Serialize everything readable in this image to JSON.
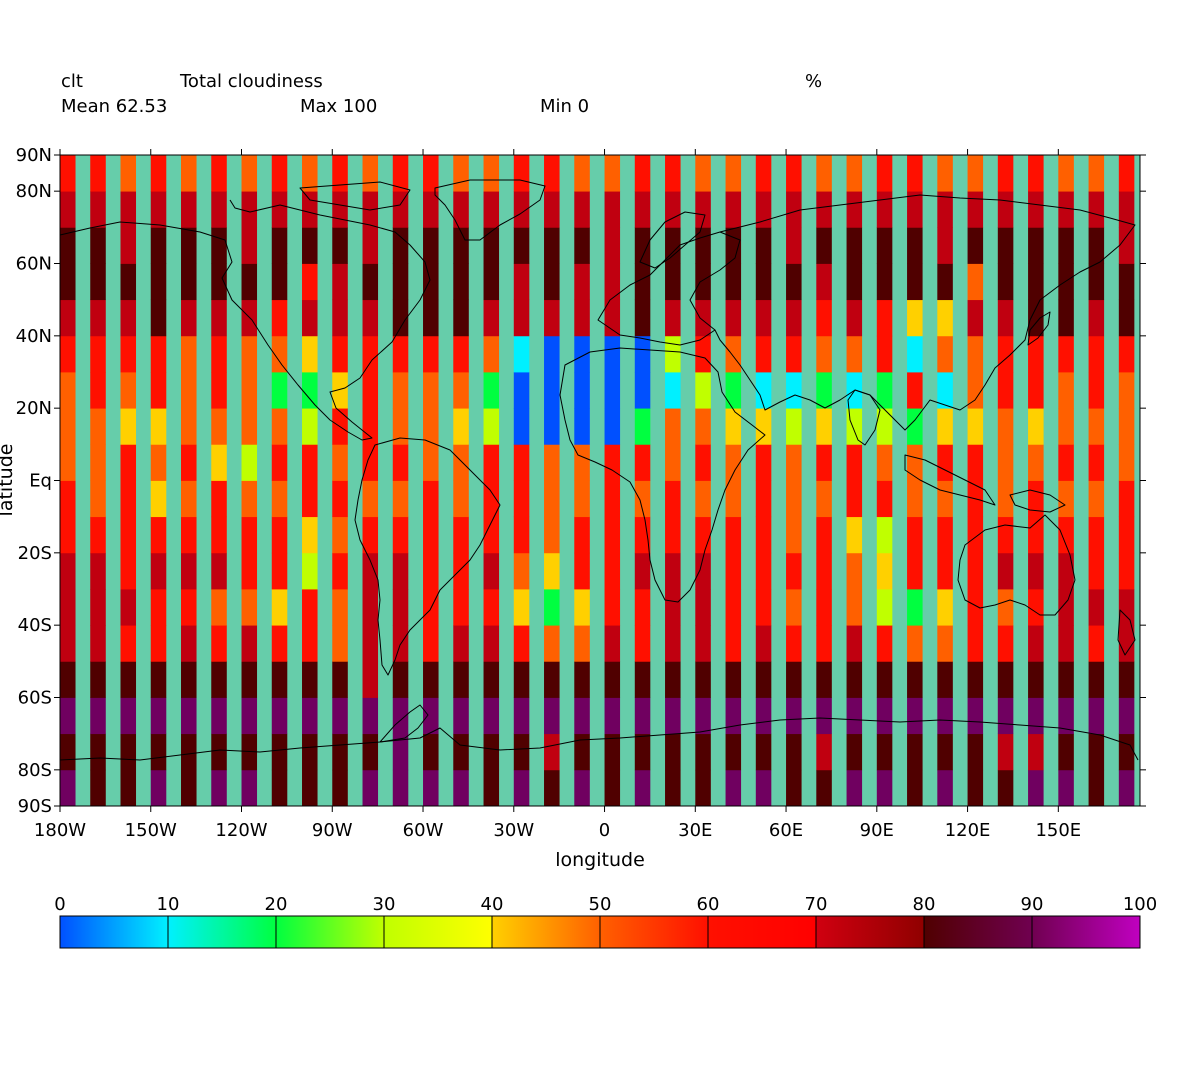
{
  "chart_data": {
    "type": "heatmap",
    "title": "Total cloudiness",
    "variable": "clt",
    "units": "%",
    "stats": {
      "mean_label": "Mean 62.53",
      "max_label": "Max 100",
      "min_label": "Min 0"
    },
    "xlabel": "longitude",
    "ylabel": "latitude",
    "xlim": [
      -180,
      177
    ],
    "ylim": [
      -90,
      90
    ],
    "x_ticks": [
      {
        "value": -180,
        "label": "180W"
      },
      {
        "value": -150,
        "label": "150W"
      },
      {
        "value": -120,
        "label": "120W"
      },
      {
        "value": -90,
        "label": "90W"
      },
      {
        "value": -60,
        "label": "60W"
      },
      {
        "value": -30,
        "label": "30W"
      },
      {
        "value": 0,
        "label": "0"
      },
      {
        "value": 30,
        "label": "30E"
      },
      {
        "value": 60,
        "label": "60E"
      },
      {
        "value": 90,
        "label": "90E"
      },
      {
        "value": 120,
        "label": "120E"
      },
      {
        "value": 150,
        "label": "150E"
      }
    ],
    "y_ticks": [
      {
        "value": 90,
        "label": "90N"
      },
      {
        "value": 80,
        "label": "80N"
      },
      {
        "value": 60,
        "label": "60N"
      },
      {
        "value": 40,
        "label": "40N"
      },
      {
        "value": 20,
        "label": "20N"
      },
      {
        "value": 0,
        "label": "Eq"
      },
      {
        "value": -20,
        "label": "20S"
      },
      {
        "value": -40,
        "label": "40S"
      },
      {
        "value": -60,
        "label": "60S"
      },
      {
        "value": -80,
        "label": "80S"
      },
      {
        "value": -90,
        "label": "90S"
      }
    ],
    "grid": false,
    "legend": "colorbar-bottom",
    "colorbar": {
      "min": 0,
      "max": 100,
      "step": 10,
      "tick_labels": [
        "0",
        "10",
        "20",
        "30",
        "40",
        "50",
        "60",
        "70",
        "80",
        "90",
        "100"
      ],
      "colors": [
        "#0050ff",
        "#00f0ff",
        "#00ff40",
        "#c0ff00",
        "#ffd000",
        "#ff6000",
        "#ff1000",
        "#c00010",
        "#500000",
        "#700060",
        "#c000c0"
      ]
    },
    "missing_color": "#66cdaa",
    "missing_data": "alternating 5-degree longitude columns",
    "grid_spacing_deg": 5,
    "bands_lat_south_to_north": [
      -90,
      -80,
      -70,
      -60,
      -50,
      -40,
      -30,
      -20,
      -10,
      0,
      10,
      20,
      30,
      40,
      50,
      60,
      70,
      80,
      90
    ],
    "bands_values": [
      [
        95,
        85,
        85,
        90,
        85,
        92,
        90,
        80,
        88,
        85,
        90,
        95,
        90,
        92,
        88,
        90,
        85,
        92,
        88,
        90,
        85,
        88,
        92,
        90,
        85,
        88,
        90,
        92,
        85,
        90,
        88,
        85,
        90,
        92,
        88,
        90
      ],
      [
        85,
        80,
        80,
        88,
        82,
        85,
        88,
        80,
        85,
        80,
        85,
        90,
        88,
        88,
        82,
        85,
        78,
        80,
        82,
        85,
        80,
        85,
        88,
        80,
        85,
        72,
        80,
        88,
        82,
        85,
        80,
        72,
        78,
        85,
        80,
        85
      ],
      [
        92,
        90,
        92,
        92,
        90,
        95,
        92,
        90,
        92,
        92,
        92,
        95,
        92,
        95,
        90,
        92,
        92,
        90,
        92,
        92,
        92,
        95,
        92,
        92,
        90,
        92,
        92,
        92,
        95,
        92,
        92,
        90,
        92,
        92,
        92,
        95
      ],
      [
        85,
        82,
        80,
        85,
        82,
        85,
        80,
        85,
        82,
        80,
        78,
        82,
        85,
        82,
        80,
        85,
        82,
        80,
        85,
        82,
        80,
        85,
        82,
        80,
        85,
        82,
        80,
        85,
        82,
        80,
        85,
        82,
        80,
        85,
        82,
        80
      ],
      [
        72,
        70,
        68,
        66,
        70,
        68,
        72,
        65,
        62,
        55,
        72,
        70,
        68,
        70,
        72,
        68,
        58,
        52,
        70,
        68,
        72,
        70,
        68,
        72,
        62,
        68,
        70,
        65,
        58,
        55,
        68,
        62,
        70,
        72,
        68,
        70
      ],
      [
        75,
        72,
        70,
        68,
        66,
        58,
        55,
        42,
        62,
        55,
        70,
        72,
        68,
        66,
        65,
        40,
        28,
        45,
        60,
        65,
        70,
        72,
        66,
        60,
        58,
        65,
        55,
        30,
        25,
        45,
        60,
        58,
        66,
        70,
        72,
        70
      ],
      [
        72,
        70,
        68,
        70,
        72,
        70,
        68,
        66,
        35,
        62,
        70,
        72,
        68,
        66,
        70,
        55,
        45,
        65,
        68,
        70,
        72,
        70,
        66,
        62,
        68,
        60,
        55,
        40,
        62,
        66,
        68,
        70,
        72,
        70,
        68,
        66
      ],
      [
        68,
        62,
        60,
        66,
        60,
        65,
        62,
        66,
        40,
        58,
        65,
        62,
        60,
        66,
        62,
        60,
        58,
        65,
        66,
        62,
        65,
        60,
        62,
        66,
        58,
        62,
        40,
        35,
        60,
        65,
        62,
        60,
        66,
        62,
        65,
        62
      ],
      [
        62,
        58,
        60,
        42,
        55,
        62,
        58,
        55,
        62,
        60,
        58,
        55,
        62,
        58,
        60,
        62,
        58,
        55,
        60,
        58,
        62,
        55,
        58,
        62,
        58,
        55,
        60,
        62,
        58,
        55,
        60,
        58,
        62,
        58,
        55,
        60
      ],
      [
        55,
        58,
        62,
        55,
        60,
        42,
        30,
        60,
        62,
        58,
        60,
        62,
        58,
        55,
        60,
        62,
        58,
        55,
        62,
        60,
        58,
        62,
        55,
        60,
        58,
        62,
        60,
        55,
        58,
        62,
        60,
        58,
        55,
        62,
        60,
        58
      ],
      [
        50,
        55,
        48,
        45,
        52,
        58,
        58,
        50,
        35,
        60,
        62,
        55,
        58,
        48,
        35,
        5,
        5,
        5,
        5,
        20,
        58,
        52,
        42,
        40,
        30,
        42,
        38,
        32,
        25,
        42,
        48,
        52,
        45,
        50,
        52,
        55
      ],
      [
        58,
        62,
        55,
        60,
        52,
        65,
        50,
        28,
        22,
        48,
        62,
        55,
        58,
        50,
        20,
        5,
        5,
        5,
        5,
        8,
        12,
        30,
        20,
        18,
        15,
        22,
        10,
        25,
        62,
        18,
        55,
        62,
        60,
        58,
        62,
        55
      ],
      [
        62,
        65,
        60,
        62,
        58,
        62,
        55,
        50,
        40,
        62,
        68,
        65,
        62,
        60,
        55,
        10,
        5,
        5,
        5,
        8,
        35,
        62,
        55,
        60,
        65,
        55,
        58,
        62,
        15,
        50,
        58,
        62,
        66,
        62,
        60,
        65
      ],
      [
        72,
        78,
        75,
        80,
        75,
        70,
        72,
        62,
        72,
        75,
        78,
        80,
        82,
        80,
        75,
        72,
        78,
        75,
        72,
        80,
        70,
        72,
        75,
        78,
        72,
        65,
        70,
        62,
        45,
        40,
        75,
        78,
        80,
        82,
        78,
        80
      ],
      [
        82,
        80,
        85,
        88,
        82,
        85,
        80,
        82,
        60,
        78,
        82,
        85,
        88,
        85,
        82,
        78,
        80,
        70,
        75,
        82,
        85,
        88,
        85,
        80,
        82,
        78,
        80,
        85,
        82,
        88,
        50,
        85,
        82,
        80,
        85,
        88
      ],
      [
        80,
        82,
        78,
        85,
        82,
        80,
        78,
        85,
        82,
        80,
        78,
        82,
        85,
        80,
        82,
        85,
        80,
        82,
        78,
        85,
        80,
        82,
        85,
        80,
        78,
        82,
        85,
        80,
        82,
        78,
        85,
        82,
        80,
        85,
        82,
        78
      ],
      [
        72,
        75,
        70,
        72,
        75,
        72,
        70,
        75,
        72,
        70,
        72,
        75,
        72,
        70,
        75,
        72,
        70,
        75,
        72,
        70,
        72,
        75,
        72,
        70,
        75,
        72,
        70,
        75,
        72,
        70,
        72,
        75,
        72,
        70,
        75,
        72
      ],
      [
        60,
        62,
        55,
        65,
        58,
        62,
        55,
        60,
        58,
        62,
        55,
        60,
        62,
        58,
        55,
        60,
        62,
        55,
        58,
        60,
        62,
        58,
        55,
        60,
        62,
        58,
        55,
        60,
        62,
        58,
        55,
        60,
        62,
        58,
        55,
        60
      ],
      [
        45,
        48,
        42,
        50,
        45,
        48,
        42,
        50,
        45,
        48,
        42,
        50,
        45,
        48,
        42,
        50,
        45,
        48,
        42,
        50,
        45,
        48,
        42,
        50,
        45,
        48,
        42,
        50,
        45,
        48,
        42,
        50,
        45,
        48,
        42,
        50
      ]
    ]
  }
}
